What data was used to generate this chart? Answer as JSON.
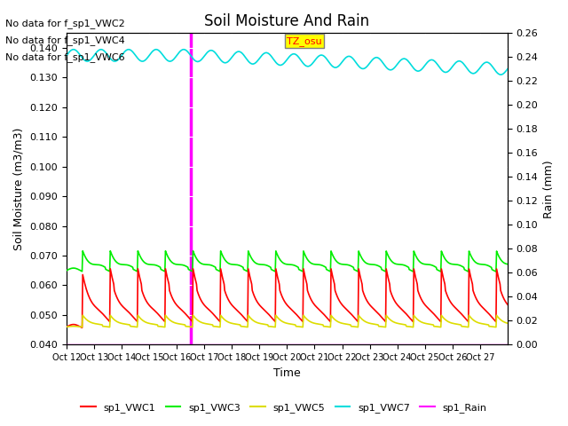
{
  "title": "Soil Moisture And Rain",
  "xlabel": "Time",
  "ylabel_left": "Soil Moisture (m3/m3)",
  "ylabel_right": "Rain (mm)",
  "ylim_left": [
    0.04,
    0.145
  ],
  "ylim_right": [
    0.0,
    0.26
  ],
  "background_color": "#e8e8e8",
  "no_data_texts": [
    "No data for f_sp1_VWC2",
    "No data for f_sp1_VWC4",
    "No data for f_sp1_VWC6"
  ],
  "tz_label": "TZ_osu",
  "x_tick_labels": [
    "Oct 12",
    "Oct 13",
    "Oct 14",
    "Oct 15",
    "Oct 16",
    "Oct 17",
    "Oct 18",
    "Oct 19",
    "Oct 20",
    "Oct 21",
    "Oct 22",
    "Oct 23",
    "Oct 24",
    "Oct 25",
    "Oct 26",
    "Oct 27"
  ],
  "n_days": 16,
  "colors": {
    "VWC1": "#ff0000",
    "VWC3": "#00ee00",
    "VWC5": "#dddd00",
    "VWC7": "#00dddd",
    "Rain": "#ff00ff"
  },
  "legend_labels": [
    "sp1_VWC1",
    "sp1_VWC3",
    "sp1_VWC5",
    "sp1_VWC7",
    "sp1_Rain"
  ],
  "rain_spike_day": 4.5,
  "vwc7_base": 0.1375,
  "vwc7_amp": 0.002,
  "vwc3_base": 0.065,
  "vwc1_base": 0.046,
  "vwc5_base": 0.046
}
